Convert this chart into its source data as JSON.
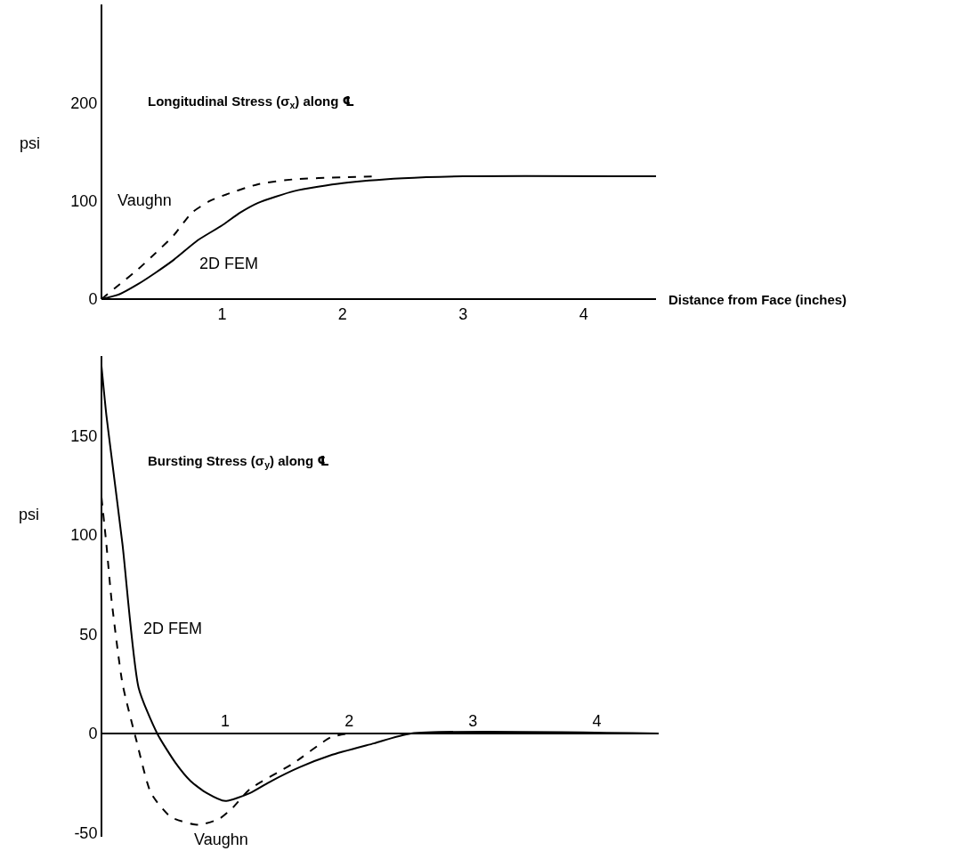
{
  "chart_data": [
    {
      "type": "line",
      "title": "Longitudinal Stress (σ$_{x}$) along ℄",
      "xlabel": "Distance from Face (inches)",
      "ylabel": "psi",
      "legend": false,
      "grid": false,
      "xlim": [
        0,
        4.6
      ],
      "xticks": [
        1,
        2,
        3,
        4
      ],
      "ylim": [
        0,
        300
      ],
      "yticks": [
        0,
        100,
        200
      ],
      "series": [
        {
          "name": "2D FEM",
          "color": "#000000",
          "line_style": "solid",
          "x": [
            0,
            0.15,
            0.3,
            0.45,
            0.6,
            0.8,
            1.0,
            1.15,
            1.3,
            1.6,
            2.0,
            2.5,
            3.0,
            4.6
          ],
          "values": [
            0,
            5,
            15,
            27,
            40,
            60,
            75,
            88,
            98,
            110,
            118,
            123,
            125,
            125
          ]
        },
        {
          "name": "Vaughn",
          "color": "#000000",
          "line_style": "dashed",
          "x": [
            0,
            0.15,
            0.3,
            0.45,
            0.6,
            0.75,
            0.9,
            1.0,
            1.3,
            1.6,
            2.0,
            2.3
          ],
          "values": [
            0,
            15,
            30,
            47,
            65,
            88,
            100,
            105,
            117,
            122,
            124,
            125
          ]
        }
      ]
    },
    {
      "type": "line",
      "title": "Bursting Stress (σ$_{y}$) along ℄",
      "ylabel": "psi",
      "legend": false,
      "grid": false,
      "xlim": [
        0,
        4.5
      ],
      "xticks": [
        1,
        2,
        3,
        4
      ],
      "ylim": [
        -52,
        190
      ],
      "yticks": [
        -50,
        0,
        50,
        100,
        150
      ],
      "series": [
        {
          "name": "2D FEM",
          "color": "#000000",
          "line_style": "solid",
          "x": [
            0,
            0.04,
            0.08,
            0.17,
            0.3,
            0.45,
            0.6,
            0.72,
            0.85,
            1.0,
            1.2,
            1.37,
            1.6,
            1.85,
            2.2,
            2.5,
            4.5
          ],
          "values": [
            185,
            160,
            140,
            95,
            23,
            0,
            -15,
            -24,
            -30,
            -34,
            -30,
            -24,
            -17,
            -11,
            -5,
            0,
            0
          ]
        },
        {
          "name": "Vaughn",
          "color": "#000000",
          "line_style": "dashed",
          "x": [
            0,
            0.04,
            0.08,
            0.17,
            0.28,
            0.4,
            0.56,
            0.78,
            0.95,
            1.05,
            1.2,
            1.55,
            1.85,
            2.0
          ],
          "values": [
            119,
            95,
            68,
            25,
            -3,
            -30,
            -42,
            -46,
            -43,
            -38,
            -28,
            -15,
            -2,
            0
          ]
        }
      ]
    }
  ]
}
